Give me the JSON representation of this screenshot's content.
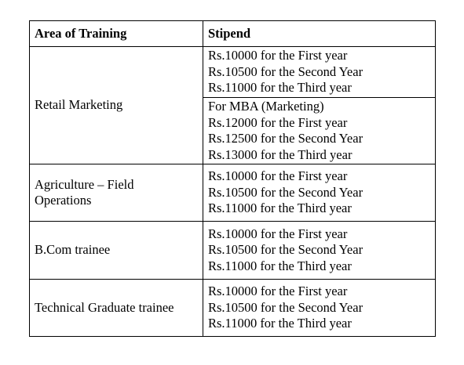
{
  "table": {
    "headers": {
      "area": "Area of Training",
      "stipend": "Stipend"
    },
    "rows": [
      {
        "area": "Retail Marketing",
        "stipend_blocks": [
          [
            "Rs.10000 for the First year",
            "Rs.10500 for the Second Year",
            "Rs.11000 for the Third year"
          ],
          [
            "For MBA (Marketing)",
            "Rs.12000 for the First year",
            "Rs.12500 for the Second Year",
            "Rs.13000 for the Third year"
          ]
        ]
      },
      {
        "area_lines": [
          "Agriculture – Field",
          "Operations"
        ],
        "stipend_lines": [
          "Rs.10000 for the First year",
          "Rs.10500 for the Second Year",
          "Rs.11000 for the Third year"
        ]
      },
      {
        "area": "B.Com trainee",
        "stipend_lines": [
          "Rs.10000 for the First year",
          "Rs.10500 for the Second Year",
          "Rs.11000 for the Third year"
        ]
      },
      {
        "area": "Technical Graduate trainee",
        "stipend_lines": [
          "Rs.10000 for the First year",
          "Rs.10500 for the Second Year",
          "Rs.11000 for the Third year"
        ]
      }
    ]
  }
}
